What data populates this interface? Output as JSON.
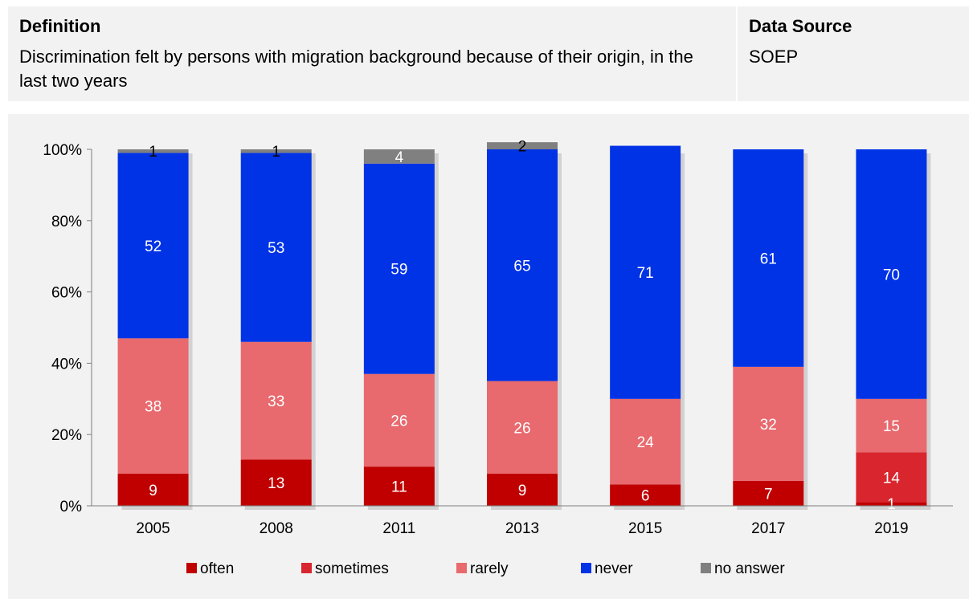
{
  "header": {
    "definition_label": "Definition",
    "definition_text": "Discrimination felt by persons with migration background because of their origin, in the last two years",
    "source_label": "Data Source",
    "source_text": "SOEP"
  },
  "colors": {
    "often": "#c00000",
    "sometimes": "#d9262e",
    "rarely": "#e8696e",
    "never": "#0033e6",
    "no_answer": "#808080"
  },
  "chart_data": {
    "type": "bar",
    "stacked": true,
    "categories": [
      "2005",
      "2008",
      "2011",
      "2013",
      "2015",
      "2017",
      "2019"
    ],
    "series": [
      {
        "name": "often",
        "color": "#c00000",
        "values": [
          9,
          13,
          11,
          9,
          6,
          7,
          1
        ]
      },
      {
        "name": "sometimes",
        "color": "#d9262e",
        "values": [
          0,
          0,
          0,
          0,
          0,
          0,
          14
        ]
      },
      {
        "name": "rarely",
        "color": "#e8696e",
        "values": [
          38,
          33,
          26,
          26,
          24,
          32,
          15
        ]
      },
      {
        "name": "never",
        "color": "#0033e6",
        "values": [
          52,
          53,
          59,
          65,
          71,
          61,
          70
        ]
      },
      {
        "name": "no answer",
        "color": "#808080",
        "values": [
          1,
          1,
          4,
          2,
          0,
          0,
          0
        ]
      }
    ],
    "data_labels": [
      [
        "9",
        "",
        "38",
        "52",
        "1"
      ],
      [
        "13",
        "",
        "33",
        "53",
        "1"
      ],
      [
        "11",
        "",
        "26",
        "59",
        "4"
      ],
      [
        "9",
        "",
        "26",
        "65",
        "2"
      ],
      [
        "6",
        "",
        "24",
        "71",
        ""
      ],
      [
        "7",
        "",
        "32",
        "61",
        ""
      ],
      [
        "1",
        "14",
        "15",
        "70",
        ""
      ]
    ],
    "ylim": [
      0,
      100
    ],
    "y_ticks": [
      "0%",
      "20%",
      "40%",
      "60%",
      "80%",
      "100%"
    ],
    "legend_position": "bottom",
    "grid": false
  }
}
